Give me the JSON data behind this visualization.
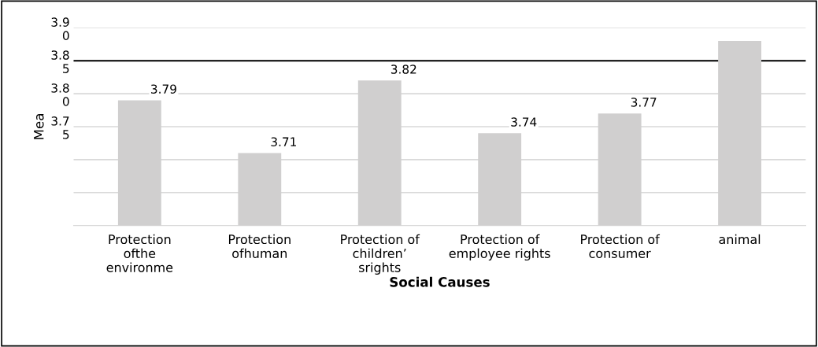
{
  "chart_data": {
    "type": "bar",
    "xlabel": "Social Causes",
    "ylabel": "Mea",
    "categories": [
      "Protection\nofthe\nenvironme",
      "Protection\nofhuman",
      "Protection of\nchildren’\nsrights",
      "Protection of\nemployee rights",
      "Protection of\nconsumer",
      "animal"
    ],
    "values": [
      3.79,
      3.71,
      3.82,
      3.74,
      3.77,
      3.88
    ],
    "value_labels": [
      "3.79",
      "3.71",
      "3.82",
      "3.74",
      "3.77",
      null
    ],
    "color": "#d0cfcf",
    "ylim": [
      3.6,
      3.9
    ],
    "yticks": [
      {
        "value": 3.65,
        "label": null
      },
      {
        "value": 3.7,
        "label": null
      },
      {
        "value": 3.75,
        "label": "3.75"
      },
      {
        "value": 3.8,
        "label": "3.80"
      },
      {
        "value": 3.85,
        "label": "3.85"
      },
      {
        "value": 3.9,
        "label": "3.90"
      }
    ],
    "ref_lines": [
      {
        "axis": "y",
        "value": 3.85,
        "color": "#000000"
      }
    ],
    "grid": "y"
  }
}
